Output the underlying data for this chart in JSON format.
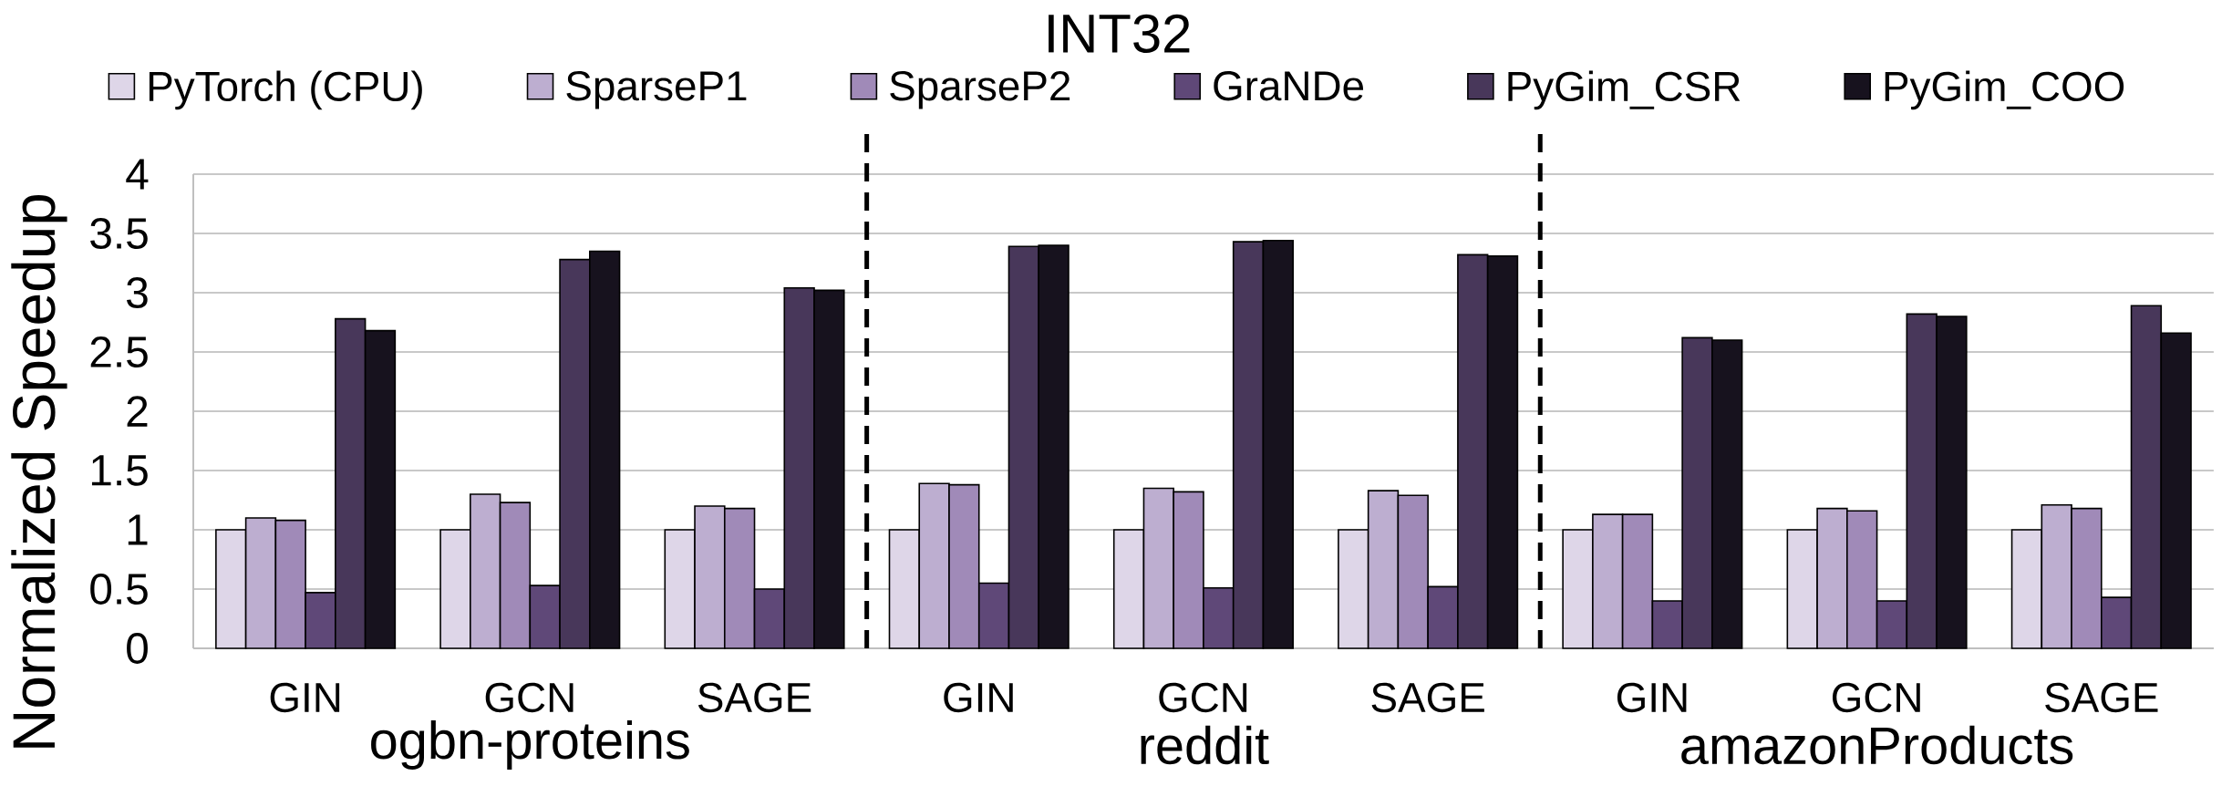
{
  "chart_data": {
    "type": "bar",
    "title": "INT32",
    "ylabel": "Normalized Speedup",
    "categories": [
      "GIN",
      "GCN",
      "SAGE",
      "GIN",
      "GCN",
      "SAGE",
      "GIN",
      "GCN",
      "SAGE"
    ],
    "annotations": [
      "ogbn-proteins",
      "reddit",
      "amazonProducts"
    ],
    "series": [
      {
        "name": "PyTorch (CPU)",
        "color": "#ded6e8",
        "values": [
          1,
          1,
          1,
          1,
          1,
          1,
          1,
          1,
          1
        ]
      },
      {
        "name": "SparseP1",
        "color": "#bdaed0",
        "values": [
          1.1,
          1.3,
          1.2,
          1.39,
          1.35,
          1.33,
          1.13,
          1.18,
          1.21
        ]
      },
      {
        "name": "SparseP2",
        "color": "#a08ab8",
        "values": [
          1.08,
          1.23,
          1.18,
          1.38,
          1.32,
          1.29,
          1.13,
          1.16,
          1.18
        ]
      },
      {
        "name": "GraNDe",
        "color": "#5f4878",
        "values": [
          0.47,
          0.53,
          0.5,
          0.55,
          0.51,
          0.52,
          0.4,
          0.4,
          0.43
        ]
      },
      {
        "name": "PyGim_CSR",
        "color": "#48375a",
        "values": [
          2.78,
          3.28,
          3.04,
          3.39,
          3.43,
          3.32,
          2.62,
          2.82,
          2.89
        ]
      },
      {
        "name": "PyGim_COO",
        "color": "#17121e",
        "values": [
          2.68,
          3.35,
          3.02,
          3.4,
          3.44,
          3.31,
          2.6,
          2.8,
          2.66
        ]
      }
    ],
    "ylim": [
      0,
      4
    ],
    "yticks": [
      0,
      0.5,
      1,
      1.5,
      2,
      2.5,
      3,
      3.5,
      4
    ],
    "grid": "y",
    "legend": "top"
  }
}
